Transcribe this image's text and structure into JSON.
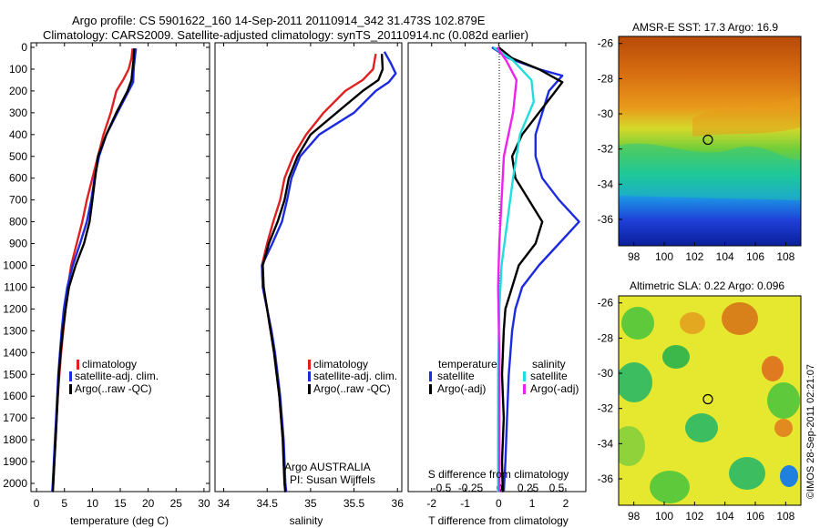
{
  "header": {
    "line1": "Argo profile: CS 5901622_160 14-Sep-2011 20110914_342 31.473S 102.879E",
    "line2": "Climatology: CARS2009. Satellite-adjusted climatology: synTS_20110914.nc (0.082d earlier)"
  },
  "colors": {
    "climatology": "#e02020",
    "satellite": "#1c2ae0",
    "argo": "#000000",
    "s_satellite": "#22dddd",
    "s_argo": "#ee22ee"
  },
  "chart_data": [
    {
      "type": "line",
      "name": "temperature-profile",
      "xlabel": "temperature (deg C)",
      "xlim": [
        -1,
        31
      ],
      "xticks": [
        0,
        5,
        10,
        15,
        20,
        25,
        30
      ],
      "ylim": [
        0,
        2060
      ],
      "yticks": [
        0,
        100,
        200,
        300,
        400,
        500,
        600,
        700,
        800,
        900,
        1000,
        1100,
        1200,
        1300,
        1400,
        1500,
        1600,
        1700,
        1800,
        1900,
        2000
      ],
      "legend": [
        "climatology",
        "satellite-adj. clim.",
        "Argo(..raw -QC)"
      ],
      "series": [
        {
          "name": "climatology",
          "color": "#e02020",
          "points": [
            [
              17.2,
              5
            ],
            [
              17,
              50
            ],
            [
              16.5,
              100
            ],
            [
              15.5,
              150
            ],
            [
              14.3,
              200
            ],
            [
              13.3,
              300
            ],
            [
              12,
              400
            ],
            [
              11,
              500
            ],
            [
              10,
              600
            ],
            [
              9,
              700
            ],
            [
              8.2,
              800
            ],
            [
              7.2,
              900
            ],
            [
              6.2,
              1000
            ],
            [
              5.6,
              1100
            ],
            [
              5.2,
              1200
            ],
            [
              4.8,
              1300
            ],
            [
              4.4,
              1400
            ],
            [
              4.1,
              1500
            ],
            [
              3.8,
              1600
            ],
            [
              3.6,
              1700
            ],
            [
              3.4,
              1800
            ],
            [
              3.2,
              1900
            ],
            [
              3,
              2000
            ],
            [
              2.9,
              2040
            ]
          ]
        },
        {
          "name": "satellite-adj. clim.",
          "color": "#1c2ae0",
          "points": [
            [
              17.8,
              5
            ],
            [
              17.6,
              50
            ],
            [
              17.4,
              100
            ],
            [
              17.3,
              160
            ],
            [
              16.5,
              200
            ],
            [
              14.5,
              300
            ],
            [
              12.5,
              400
            ],
            [
              11.2,
              500
            ],
            [
              10.4,
              600
            ],
            [
              9.8,
              700
            ],
            [
              9,
              800
            ],
            [
              7.8,
              900
            ],
            [
              6.5,
              1000
            ],
            [
              5.5,
              1100
            ],
            [
              4.9,
              1200
            ],
            [
              4.5,
              1300
            ],
            [
              4.2,
              1400
            ],
            [
              3.9,
              1500
            ],
            [
              3.7,
              1600
            ],
            [
              3.5,
              1700
            ],
            [
              3.3,
              1800
            ],
            [
              3.1,
              1900
            ],
            [
              2.9,
              2000
            ],
            [
              2.8,
              2040
            ]
          ]
        },
        {
          "name": "Argo(..raw -QC)",
          "color": "#000000",
          "points": [
            [
              17.5,
              5
            ],
            [
              17.4,
              50
            ],
            [
              17.2,
              100
            ],
            [
              17,
              150
            ],
            [
              16.3,
              200
            ],
            [
              14.3,
              300
            ],
            [
              12.5,
              400
            ],
            [
              11,
              500
            ],
            [
              10.5,
              600
            ],
            [
              10,
              700
            ],
            [
              9.5,
              800
            ],
            [
              8.5,
              900
            ],
            [
              7,
              1000
            ],
            [
              5.8,
              1100
            ],
            [
              5.2,
              1200
            ],
            [
              4.7,
              1300
            ],
            [
              4.3,
              1400
            ],
            [
              4,
              1500
            ],
            [
              3.8,
              1600
            ],
            [
              3.6,
              1700
            ],
            [
              3.4,
              1800
            ],
            [
              3.2,
              1900
            ],
            [
              3,
              2000
            ],
            [
              2.9,
              2040
            ]
          ]
        }
      ]
    },
    {
      "type": "line",
      "name": "salinity-profile",
      "xlabel": "salinity",
      "xlim": [
        33.9,
        36.05
      ],
      "xticks": [
        34,
        34.5,
        35,
        35.5,
        36
      ],
      "xticklabels": [
        "34",
        "34.5",
        "35",
        "35.5",
        "36"
      ],
      "ylim": [
        0,
        2060
      ],
      "legend": [
        "climatology",
        "satellite-adj. clim.",
        "Argo(..raw -QC)"
      ],
      "annotation": [
        "Argo AUSTRALIA",
        "PI: Susan Wijffels"
      ],
      "series": [
        {
          "name": "climatology",
          "color": "#e02020",
          "points": [
            [
              35.75,
              30
            ],
            [
              35.72,
              100
            ],
            [
              35.6,
              150
            ],
            [
              35.4,
              200
            ],
            [
              35.15,
              300
            ],
            [
              34.95,
              400
            ],
            [
              34.8,
              500
            ],
            [
              34.7,
              600
            ],
            [
              34.65,
              700
            ],
            [
              34.57,
              800
            ],
            [
              34.5,
              900
            ],
            [
              34.44,
              1000
            ],
            [
              34.45,
              1100
            ],
            [
              34.5,
              1200
            ],
            [
              34.54,
              1300
            ],
            [
              34.58,
              1400
            ],
            [
              34.61,
              1500
            ],
            [
              34.64,
              1600
            ],
            [
              34.66,
              1700
            ],
            [
              34.68,
              1800
            ],
            [
              34.69,
              1900
            ],
            [
              34.7,
              2000
            ],
            [
              34.71,
              2040
            ]
          ]
        },
        {
          "name": "satellite-adj. clim.",
          "color": "#1c2ae0",
          "points": [
            [
              35.85,
              20
            ],
            [
              35.92,
              70
            ],
            [
              35.98,
              120
            ],
            [
              35.9,
              160
            ],
            [
              35.75,
              200
            ],
            [
              35.5,
              300
            ],
            [
              35.1,
              400
            ],
            [
              34.88,
              500
            ],
            [
              34.78,
              600
            ],
            [
              34.73,
              700
            ],
            [
              34.67,
              800
            ],
            [
              34.56,
              900
            ],
            [
              34.44,
              1000
            ],
            [
              34.45,
              1100
            ],
            [
              34.5,
              1200
            ],
            [
              34.55,
              1300
            ],
            [
              34.59,
              1400
            ],
            [
              34.62,
              1500
            ],
            [
              34.65,
              1600
            ],
            [
              34.67,
              1700
            ],
            [
              34.69,
              1800
            ],
            [
              34.7,
              1900
            ],
            [
              34.71,
              2000
            ],
            [
              34.72,
              2040
            ]
          ]
        },
        {
          "name": "Argo(..raw -QC)",
          "color": "#000000",
          "points": [
            [
              35.82,
              30
            ],
            [
              35.83,
              100
            ],
            [
              35.78,
              150
            ],
            [
              35.6,
              200
            ],
            [
              35.3,
              300
            ],
            [
              35.0,
              400
            ],
            [
              34.85,
              500
            ],
            [
              34.75,
              600
            ],
            [
              34.7,
              700
            ],
            [
              34.62,
              800
            ],
            [
              34.52,
              900
            ],
            [
              34.45,
              1000
            ],
            [
              34.46,
              1100
            ],
            [
              34.5,
              1200
            ],
            [
              34.54,
              1300
            ],
            [
              34.58,
              1400
            ],
            [
              34.61,
              1500
            ],
            [
              34.64,
              1600
            ],
            [
              34.66,
              1700
            ],
            [
              34.68,
              1800
            ],
            [
              34.69,
              1900
            ],
            [
              34.7,
              2000
            ],
            [
              34.71,
              2040
            ]
          ]
        }
      ]
    },
    {
      "type": "line",
      "name": "difference-profile",
      "xlabel": "T difference from climatology",
      "top_xlabel": "S difference from climatology",
      "xlim": [
        -2.7,
        2.6
      ],
      "xticks": [
        -2,
        -1,
        0,
        1,
        2
      ],
      "top_xticks": [
        -0.5,
        -0.25,
        0,
        0.25,
        0.5
      ],
      "top_xticklabels": [
        "-0.5",
        "-0.25",
        "0",
        "0.25",
        "0.5"
      ],
      "ylim": [
        0,
        2060
      ],
      "legend_groups": {
        "temperature": [
          "satellite",
          "Argo(-adj)"
        ],
        "salinity": [
          "satellite",
          "Argo(-adj)"
        ]
      },
      "series": [
        {
          "name": "satellite",
          "group": "temperature",
          "color": "#1c2ae0",
          "points": [
            [
              -0.2,
              0
            ],
            [
              0.3,
              50
            ],
            [
              1.2,
              100
            ],
            [
              1.9,
              130
            ],
            [
              1.5,
              200
            ],
            [
              1.3,
              300
            ],
            [
              1.1,
              400
            ],
            [
              1.1,
              500
            ],
            [
              1.3,
              600
            ],
            [
              1.8,
              700
            ],
            [
              2.4,
              800
            ],
            [
              1.8,
              900
            ],
            [
              1.2,
              1000
            ],
            [
              0.7,
              1100
            ],
            [
              0.5,
              1200
            ],
            [
              0.4,
              1300
            ],
            [
              0.3,
              1500
            ],
            [
              0.25,
              1700
            ],
            [
              0.2,
              1900
            ],
            [
              0.15,
              2040
            ]
          ]
        },
        {
          "name": "Argo(-adj)",
          "group": "temperature",
          "color": "#000000",
          "points": [
            [
              0,
              0
            ],
            [
              0.4,
              50
            ],
            [
              1.2,
              100
            ],
            [
              1.9,
              160
            ],
            [
              1.7,
              200
            ],
            [
              1.2,
              300
            ],
            [
              0.7,
              400
            ],
            [
              0.4,
              500
            ],
            [
              0.5,
              600
            ],
            [
              0.9,
              700
            ],
            [
              1.3,
              800
            ],
            [
              1.1,
              900
            ],
            [
              0.6,
              1000
            ],
            [
              0.4,
              1100
            ],
            [
              0.2,
              1200
            ],
            [
              0.15,
              1300
            ],
            [
              0.1,
              1500
            ],
            [
              0.15,
              1700
            ],
            [
              0.1,
              1900
            ],
            [
              0.12,
              2040
            ]
          ]
        },
        {
          "name": "satellite",
          "group": "salinity",
          "color": "#22dddd",
          "points": [
            [
              -0.05,
              0
            ],
            [
              0.12,
              60
            ],
            [
              0.28,
              150
            ],
            [
              0.3,
              250
            ],
            [
              0.18,
              400
            ],
            [
              0.12,
              600
            ],
            [
              0.07,
              800
            ],
            [
              0.02,
              1000
            ],
            [
              0.0,
              1200
            ],
            [
              -0.01,
              1500
            ],
            [
              -0.01,
              2040
            ]
          ]
        },
        {
          "name": "Argo(-adj)",
          "group": "salinity",
          "color": "#ee22ee",
          "points": [
            [
              -0.02,
              0
            ],
            [
              0.06,
              60
            ],
            [
              0.15,
              150
            ],
            [
              0.12,
              300
            ],
            [
              0.04,
              500
            ],
            [
              0.02,
              700
            ],
            [
              0.0,
              900
            ],
            [
              -0.01,
              1100
            ],
            [
              0.0,
              1400
            ],
            [
              0.0,
              2040
            ]
          ]
        }
      ]
    },
    {
      "type": "heatmap",
      "name": "sst-map",
      "title": "AMSR-E SST: 17.3 Argo: 16.9",
      "xticks": [
        98,
        100,
        102,
        104,
        106,
        108
      ],
      "yticks": [
        -26,
        -28,
        -30,
        -32,
        -34,
        -36
      ],
      "marker": [
        102.879,
        -31.473
      ]
    },
    {
      "type": "heatmap",
      "name": "sla-map",
      "title": "Altimetric SLA: 0.22 Argo: 0.096",
      "xticks": [
        98,
        100,
        102,
        104,
        106,
        108
      ],
      "yticks": [
        -26,
        -28,
        -30,
        -32,
        -34,
        -36
      ],
      "marker": [
        102.879,
        -31.473
      ]
    }
  ],
  "credit": "©IMOS 28-Sep-2011 02:21:07"
}
